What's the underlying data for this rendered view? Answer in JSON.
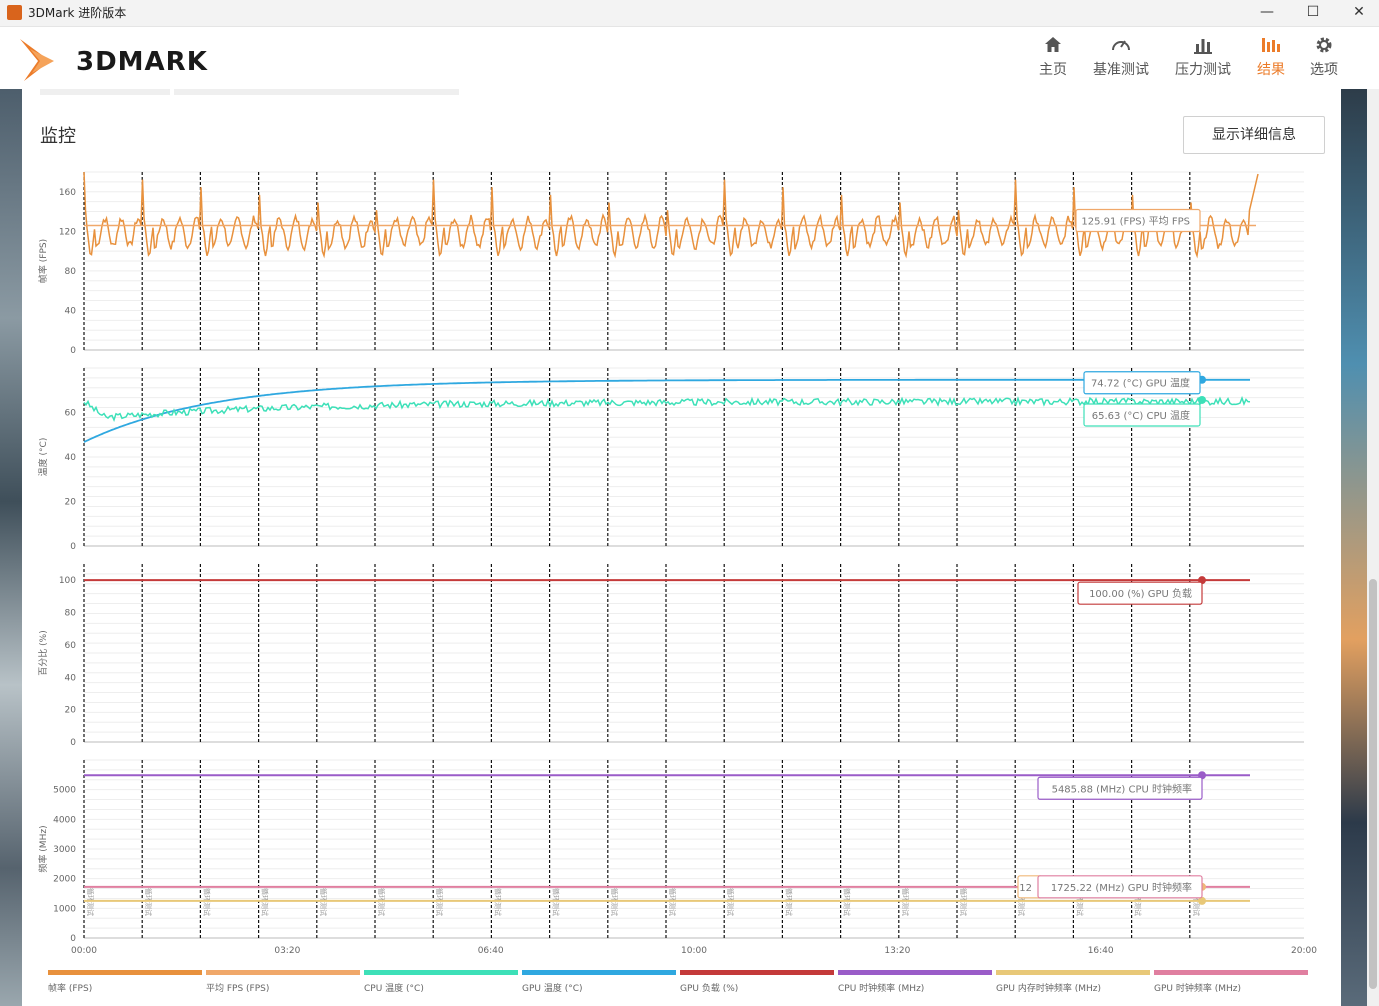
{
  "window": {
    "title": "3DMark 进阶版本",
    "minimize": "—",
    "maximize": "☐",
    "close": "✕"
  },
  "header": {
    "logo_text": "3DMARK",
    "nav": [
      {
        "label": "主页",
        "icon": "home-icon",
        "active": false
      },
      {
        "label": "基准测试",
        "icon": "speedometer-icon",
        "active": false
      },
      {
        "label": "压力测试",
        "icon": "bar-chart-icon",
        "active": false
      },
      {
        "label": "结果",
        "icon": "results-icon",
        "active": true
      },
      {
        "label": "选项",
        "icon": "gear-icon",
        "active": false
      }
    ]
  },
  "section": {
    "title": "监控",
    "details_button": "显示详细信息"
  },
  "colors": {
    "accent": "#ec7c2a",
    "fps": "#e8913d",
    "avg_fps": "#f0a86a",
    "cpu_temp": "#3de0b8",
    "gpu_temp": "#2fa8e0",
    "gpu_load": "#c43a3a",
    "cpu_clock": "#9a5cc8",
    "gpu_mem_clock": "#e8c878",
    "gpu_clock": "#e07fa0"
  },
  "chart_data": [
    {
      "type": "line",
      "ylabel": "帧率 (FPS)",
      "yticks": [
        0,
        40,
        80,
        120,
        160
      ],
      "ylim": [
        0,
        180
      ],
      "series": [
        {
          "name": "帧率 (FPS)",
          "values_description": "periodic sawtooth ~105-180 FPS"
        },
        {
          "name": "平均 FPS (FPS)",
          "constant": 125.91
        }
      ],
      "tooltip": "125.91 (FPS) 平均 FPS"
    },
    {
      "type": "line",
      "ylabel": "温度 (°C)",
      "yticks": [
        0,
        20,
        40,
        60
      ],
      "ylim": [
        0,
        80
      ],
      "series": [
        {
          "name": "GPU 温度 (°C)",
          "start": 46,
          "end": 74.72
        },
        {
          "name": "CPU 温度 (°C)",
          "start": 65,
          "end": 65.63
        }
      ],
      "tooltips": [
        "74.72 (°C) GPU 温度",
        "65.63 (°C) CPU 温度"
      ]
    },
    {
      "type": "line",
      "ylabel": "百分比 (%)",
      "yticks": [
        0,
        20,
        40,
        60,
        80,
        100
      ],
      "ylim": [
        0,
        110
      ],
      "series": [
        {
          "name": "GPU 负载 (%)",
          "constant": 100.0
        }
      ],
      "tooltip": "100.00 (%) GPU 负载"
    },
    {
      "type": "line",
      "ylabel": "频率 (MHz)",
      "yticks": [
        0,
        1000,
        2000,
        3000,
        4000,
        5000
      ],
      "ylim": [
        0,
        6000
      ],
      "series": [
        {
          "name": "CPU 时钟频率 (MHz)",
          "constant": 5485.88
        },
        {
          "name": "GPU 内存时钟频率 (MHz)",
          "constant": 1250
        },
        {
          "name": "GPU 时钟频率 (MHz)",
          "constant": 1725.22
        }
      ],
      "tooltips": [
        "5485.88 (MHz) CPU 时钟频率",
        "1725.22 (MHz) GPU 时钟频率"
      ],
      "tooltip_partial": "12"
    }
  ],
  "x_axis": {
    "ticks": [
      "00:00",
      "03:20",
      "06:40",
      "10:00",
      "13:20",
      "16:40",
      "20:00"
    ],
    "marker_label": "循环测试",
    "marker_count": 20
  },
  "legend": [
    {
      "label": "帧率 (FPS)",
      "color": "#e8913d"
    },
    {
      "label": "平均 FPS (FPS)",
      "color": "#f0a86a"
    },
    {
      "label": "CPU 温度 (°C)",
      "color": "#3de0b8"
    },
    {
      "label": "GPU 温度 (°C)",
      "color": "#2fa8e0"
    },
    {
      "label": "GPU 负载 (%)",
      "color": "#c43a3a"
    },
    {
      "label": "CPU 时钟频率 (MHz)",
      "color": "#9a5cc8"
    },
    {
      "label": "GPU 内存时钟频率 (MHz)",
      "color": "#e8c878"
    },
    {
      "label": "GPU 时钟频率 (MHz)",
      "color": "#e07fa0"
    }
  ]
}
